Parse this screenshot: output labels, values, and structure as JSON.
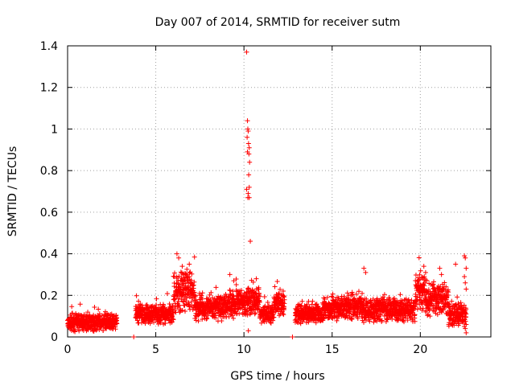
{
  "chart_data": {
    "type": "scatter",
    "title": "Day 007 of 2014, SRMTID for receiver sutm",
    "xlabel": "GPS time / hours",
    "ylabel": "SRMTID / TECUs",
    "xlim": [
      0,
      24
    ],
    "ylim": [
      0,
      1.4
    ],
    "xticks": [
      0,
      5,
      10,
      15,
      20
    ],
    "yticks": [
      0,
      0.2,
      0.4,
      0.6,
      0.8,
      1,
      1.2,
      1.4
    ],
    "grid": true,
    "marker": "+",
    "color": "#ff0000",
    "segments": [
      {
        "start": 0.0,
        "end": 2.8,
        "base": 0.07,
        "amp": 0.035
      },
      {
        "start": 3.85,
        "end": 6.0,
        "base": 0.11,
        "amp": 0.04
      },
      {
        "start": 6.0,
        "end": 7.2,
        "base": 0.22,
        "amp": 0.09
      },
      {
        "start": 7.2,
        "end": 9.0,
        "base": 0.14,
        "amp": 0.05
      },
      {
        "start": 9.0,
        "end": 10.1,
        "base": 0.16,
        "amp": 0.06
      },
      {
        "start": 10.1,
        "end": 10.9,
        "base": 0.17,
        "amp": 0.06
      },
      {
        "start": 10.9,
        "end": 11.7,
        "base": 0.11,
        "amp": 0.04
      },
      {
        "start": 11.7,
        "end": 12.3,
        "base": 0.16,
        "amp": 0.05
      },
      {
        "start": 12.9,
        "end": 14.5,
        "base": 0.11,
        "amp": 0.04
      },
      {
        "start": 14.5,
        "end": 16.7,
        "base": 0.14,
        "amp": 0.05
      },
      {
        "start": 16.7,
        "end": 19.7,
        "base": 0.13,
        "amp": 0.05
      },
      {
        "start": 19.7,
        "end": 20.4,
        "base": 0.22,
        "amp": 0.08
      },
      {
        "start": 20.4,
        "end": 21.6,
        "base": 0.18,
        "amp": 0.07
      },
      {
        "start": 21.6,
        "end": 22.6,
        "base": 0.11,
        "amp": 0.05
      }
    ],
    "points": [
      [
        10.15,
        1.37
      ],
      [
        10.2,
        1.04
      ],
      [
        10.22,
        1.0
      ],
      [
        10.24,
        0.99
      ],
      [
        10.18,
        0.96
      ],
      [
        10.26,
        0.93
      ],
      [
        10.3,
        0.91
      ],
      [
        10.28,
        0.88
      ],
      [
        10.2,
        0.89
      ],
      [
        10.32,
        0.84
      ],
      [
        10.27,
        0.78
      ],
      [
        10.3,
        0.72
      ],
      [
        10.15,
        0.71
      ],
      [
        10.24,
        0.69
      ],
      [
        10.22,
        0.67
      ],
      [
        10.3,
        0.67
      ],
      [
        10.36,
        0.46
      ],
      [
        10.25,
        0.03
      ],
      [
        6.2,
        0.4
      ],
      [
        6.3,
        0.38
      ],
      [
        6.5,
        0.34
      ],
      [
        6.9,
        0.35
      ],
      [
        16.8,
        0.33
      ],
      [
        16.9,
        0.31
      ],
      [
        20.2,
        0.34
      ],
      [
        20.3,
        0.31
      ],
      [
        21.1,
        0.33
      ],
      [
        21.2,
        0.3
      ],
      [
        22.0,
        0.35
      ],
      [
        22.5,
        0.39
      ],
      [
        22.55,
        0.38
      ],
      [
        22.6,
        0.33
      ],
      [
        22.5,
        0.29
      ],
      [
        22.55,
        0.26
      ],
      [
        22.6,
        0.23
      ],
      [
        22.6,
        0.06
      ],
      [
        22.55,
        0.04
      ],
      [
        22.6,
        0.02
      ],
      [
        9.2,
        0.3
      ],
      [
        10.7,
        0.28
      ],
      [
        3.75,
        0.0
      ],
      [
        12.75,
        0.0
      ]
    ]
  }
}
